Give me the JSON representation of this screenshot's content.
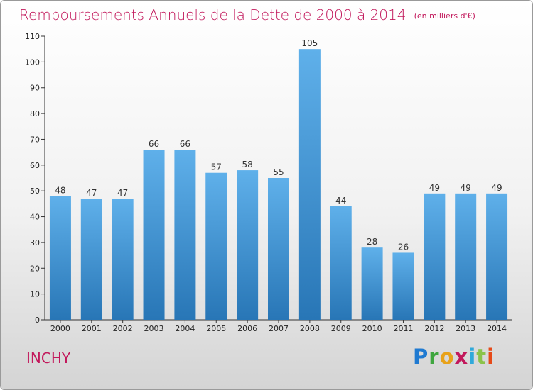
{
  "header": {
    "title": "Remboursements Annuels de la Dette de 2000 à 2014",
    "unit": "(en milliers d'€)"
  },
  "footer": {
    "city": "INCHY",
    "brand": "Proxiti"
  },
  "colors": {
    "title": "#c2185b",
    "bar_top": "#5fb0ea",
    "bar_bottom": "#2876b6",
    "axis": "#333333"
  },
  "chart_data": {
    "type": "bar",
    "title": "Remboursements Annuels de la Dette de 2000 à 2014",
    "xlabel": "",
    "ylabel": "",
    "categories": [
      "2000",
      "2001",
      "2002",
      "2003",
      "2004",
      "2005",
      "2006",
      "2007",
      "2008",
      "2009",
      "2010",
      "2011",
      "2012",
      "2013",
      "2014"
    ],
    "values": [
      48,
      47,
      47,
      66,
      66,
      57,
      58,
      55,
      105,
      44,
      28,
      26,
      49,
      49,
      49
    ],
    "ylim": [
      0,
      110
    ],
    "yticks": [
      0,
      10,
      20,
      30,
      40,
      50,
      60,
      70,
      80,
      90,
      100,
      110
    ],
    "grid": false,
    "data_labels": true
  }
}
